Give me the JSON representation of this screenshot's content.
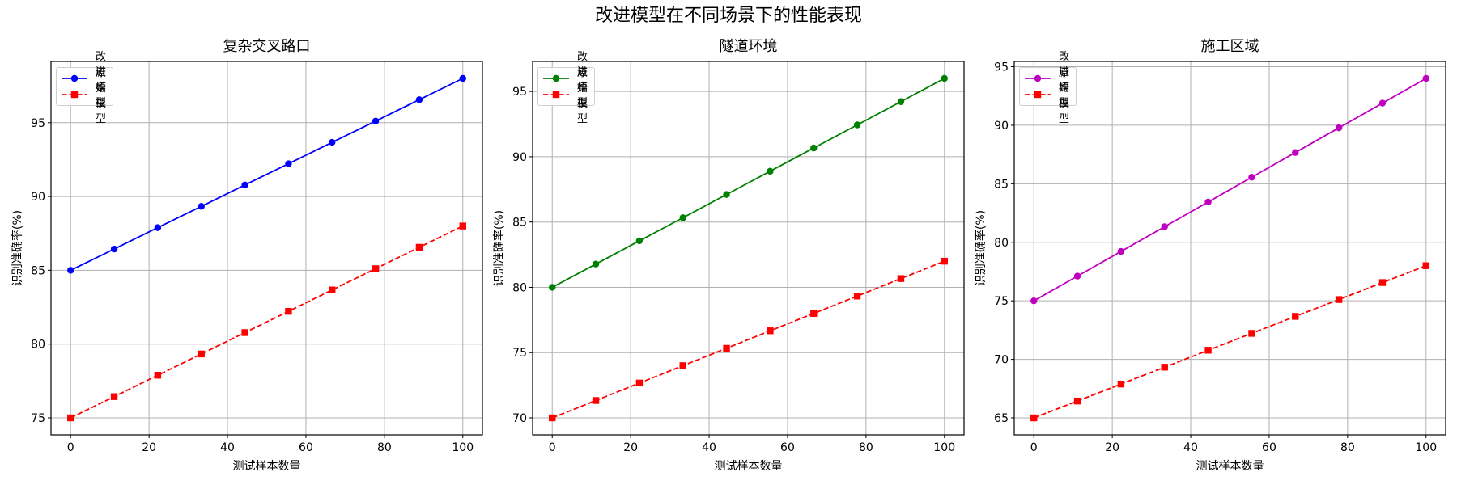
{
  "figure": {
    "title": "改进模型在不同场景下的性能表现"
  },
  "chart_data": [
    {
      "type": "line",
      "title": "复杂交叉路口",
      "xlabel": "测试样本数量",
      "ylabel": "识别准确率(%)",
      "x": [
        0,
        11.11,
        22.22,
        33.33,
        44.44,
        55.56,
        66.67,
        77.78,
        88.89,
        100
      ],
      "xlim": [
        -5,
        105
      ],
      "ylim": [
        73.85,
        99.15
      ],
      "xticks": [
        0,
        20,
        40,
        60,
        80,
        100
      ],
      "yticks": [
        75,
        80,
        85,
        90,
        95
      ],
      "grid": true,
      "legend_position": "upper left",
      "series": [
        {
          "name": "改进模型",
          "color": "#0000ff",
          "linestyle": "solid",
          "marker": "circle",
          "values": [
            85,
            86.44,
            87.89,
            89.33,
            90.78,
            92.22,
            93.67,
            95.11,
            96.56,
            98
          ]
        },
        {
          "name": "原始模型",
          "color": "#ff0000",
          "linestyle": "dashed",
          "marker": "square",
          "values": [
            75,
            76.44,
            77.89,
            79.33,
            80.78,
            82.22,
            83.67,
            85.11,
            86.56,
            88
          ]
        }
      ]
    },
    {
      "type": "line",
      "title": "隧道环境",
      "xlabel": "测试样本数量",
      "ylabel": "识别准确率(%)",
      "x": [
        0,
        11.11,
        22.22,
        33.33,
        44.44,
        55.56,
        66.67,
        77.78,
        88.89,
        100
      ],
      "xlim": [
        -5,
        105
      ],
      "ylim": [
        68.7,
        97.3
      ],
      "xticks": [
        0,
        20,
        40,
        60,
        80,
        100
      ],
      "yticks": [
        70,
        75,
        80,
        85,
        90,
        95
      ],
      "grid": true,
      "legend_position": "upper left",
      "series": [
        {
          "name": "改进模型",
          "color": "#008000",
          "linestyle": "solid",
          "marker": "circle",
          "values": [
            80,
            81.78,
            83.56,
            85.33,
            87.11,
            88.89,
            90.67,
            92.44,
            94.22,
            96
          ]
        },
        {
          "name": "原始模型",
          "color": "#ff0000",
          "linestyle": "dashed",
          "marker": "square",
          "values": [
            70,
            71.33,
            72.67,
            74,
            75.33,
            76.67,
            78,
            79.33,
            80.67,
            82
          ]
        }
      ]
    },
    {
      "type": "line",
      "title": "施工区域",
      "xlabel": "测试样本数量",
      "ylabel": "识别准确率(%)",
      "x": [
        0,
        11.11,
        22.22,
        33.33,
        44.44,
        55.56,
        66.67,
        77.78,
        88.89,
        100
      ],
      "xlim": [
        -5,
        105
      ],
      "ylim": [
        63.55,
        95.45
      ],
      "xticks": [
        0,
        20,
        40,
        60,
        80,
        100
      ],
      "yticks": [
        65,
        70,
        75,
        80,
        85,
        90,
        95
      ],
      "grid": true,
      "legend_position": "upper left",
      "series": [
        {
          "name": "改进模型",
          "color": "#bf00bf",
          "linestyle": "solid",
          "marker": "circle",
          "values": [
            75,
            77.11,
            79.22,
            81.33,
            83.44,
            85.56,
            87.67,
            89.78,
            91.89,
            94
          ]
        },
        {
          "name": "原始模型",
          "color": "#ff0000",
          "linestyle": "dashed",
          "marker": "square",
          "values": [
            65,
            66.44,
            67.89,
            69.33,
            70.78,
            72.22,
            73.67,
            75.11,
            76.56,
            78
          ]
        }
      ]
    }
  ]
}
